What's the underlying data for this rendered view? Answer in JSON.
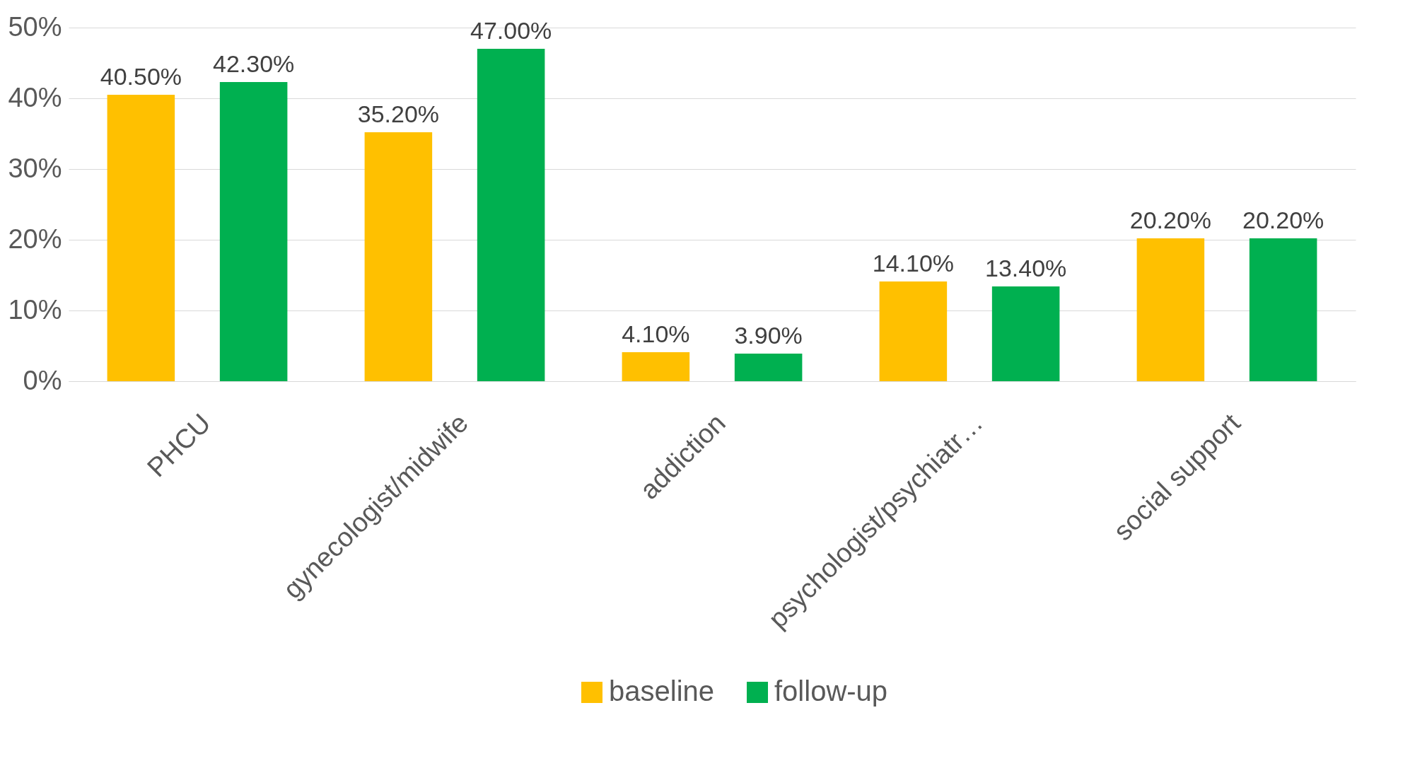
{
  "chart_data": {
    "type": "bar",
    "categories": [
      "PHCU",
      "gynecologist/midwife",
      "addiction",
      "psychologist/psychiatr…",
      "social support"
    ],
    "series": [
      {
        "name": "baseline",
        "color": "#ffc000",
        "values": [
          40.5,
          35.2,
          4.1,
          14.1,
          20.2
        ],
        "value_labels": [
          "40.50%",
          "35.20%",
          "4.10%",
          "14.10%",
          "20.20%"
        ]
      },
      {
        "name": "follow-up",
        "color": "#00b050",
        "values": [
          42.3,
          47.0,
          3.9,
          13.4,
          20.2
        ],
        "value_labels": [
          "42.30%",
          "47.00%",
          "3.90%",
          "13.40%",
          "20.20%"
        ]
      }
    ],
    "ylim": [
      0,
      50
    ],
    "yticks": [
      {
        "value": 0,
        "label": "0%"
      },
      {
        "value": 10,
        "label": "10%"
      },
      {
        "value": 20,
        "label": "20%"
      },
      {
        "value": 30,
        "label": "30%"
      },
      {
        "value": 40,
        "label": "40%"
      },
      {
        "value": 50,
        "label": "50%"
      }
    ],
    "grid": "y",
    "legend": "bottom"
  }
}
